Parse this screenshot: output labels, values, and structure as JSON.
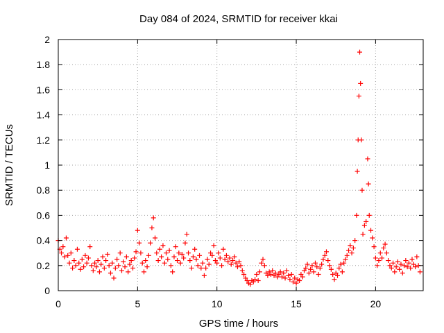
{
  "chart_data": {
    "type": "scatter",
    "title": "Day 084 of 2024, SRMTID for receiver kkai",
    "xlabel": "GPS time / hours",
    "ylabel": "SRMTID / TECUs",
    "xlim": [
      0,
      23
    ],
    "ylim": [
      0,
      2
    ],
    "xticks": [
      0,
      5,
      10,
      15,
      20
    ],
    "xtick_labels": [
      "0",
      "5",
      "10",
      "15",
      "20"
    ],
    "yticks": [
      0,
      0.2,
      0.4,
      0.6,
      0.8,
      1,
      1.2,
      1.4,
      1.6,
      1.8,
      2
    ],
    "ytick_labels": [
      "0",
      "0.2",
      "0.4",
      "0.6",
      "0.8",
      "1",
      "1.2",
      "1.4",
      "1.6",
      "1.8",
      "2"
    ],
    "grid": true,
    "marker": "plus",
    "color": "#ff0000",
    "series": [
      {
        "name": "SRMTID",
        "points": [
          [
            0.0,
            0.4
          ],
          [
            0.1,
            0.33
          ],
          [
            0.2,
            0.3
          ],
          [
            0.3,
            0.35
          ],
          [
            0.4,
            0.27
          ],
          [
            0.5,
            0.42
          ],
          [
            0.6,
            0.28
          ],
          [
            0.7,
            0.22
          ],
          [
            0.8,
            0.3
          ],
          [
            0.9,
            0.18
          ],
          [
            1.0,
            0.24
          ],
          [
            1.1,
            0.2
          ],
          [
            1.2,
            0.33
          ],
          [
            1.3,
            0.22
          ],
          [
            1.4,
            0.17
          ],
          [
            1.5,
            0.25
          ],
          [
            1.6,
            0.19
          ],
          [
            1.7,
            0.28
          ],
          [
            1.8,
            0.22
          ],
          [
            1.9,
            0.26
          ],
          [
            2.0,
            0.35
          ],
          [
            2.1,
            0.2
          ],
          [
            2.2,
            0.16
          ],
          [
            2.3,
            0.22
          ],
          [
            2.4,
            0.19
          ],
          [
            2.5,
            0.24
          ],
          [
            2.6,
            0.15
          ],
          [
            2.7,
            0.21
          ],
          [
            2.8,
            0.27
          ],
          [
            2.9,
            0.18
          ],
          [
            3.0,
            0.24
          ],
          [
            3.1,
            0.29
          ],
          [
            3.2,
            0.2
          ],
          [
            3.3,
            0.14
          ],
          [
            3.4,
            0.22
          ],
          [
            3.5,
            0.1
          ],
          [
            3.6,
            0.18
          ],
          [
            3.7,
            0.25
          ],
          [
            3.8,
            0.2
          ],
          [
            3.9,
            0.3
          ],
          [
            4.0,
            0.16
          ],
          [
            4.1,
            0.23
          ],
          [
            4.2,
            0.19
          ],
          [
            4.3,
            0.27
          ],
          [
            4.4,
            0.15
          ],
          [
            4.5,
            0.21
          ],
          [
            4.6,
            0.24
          ],
          [
            4.7,
            0.18
          ],
          [
            4.8,
            0.26
          ],
          [
            4.9,
            0.31
          ],
          [
            5.0,
            0.48
          ],
          [
            5.1,
            0.38
          ],
          [
            5.2,
            0.3
          ],
          [
            5.3,
            0.22
          ],
          [
            5.4,
            0.15
          ],
          [
            5.5,
            0.24
          ],
          [
            5.6,
            0.19
          ],
          [
            5.7,
            0.28
          ],
          [
            5.8,
            0.38
          ],
          [
            5.9,
            0.5
          ],
          [
            6.0,
            0.58
          ],
          [
            6.1,
            0.42
          ],
          [
            6.2,
            0.3
          ],
          [
            6.3,
            0.24
          ],
          [
            6.4,
            0.33
          ],
          [
            6.5,
            0.27
          ],
          [
            6.6,
            0.36
          ],
          [
            6.7,
            0.22
          ],
          [
            6.8,
            0.3
          ],
          [
            6.9,
            0.25
          ],
          [
            7.0,
            0.32
          ],
          [
            7.1,
            0.2
          ],
          [
            7.2,
            0.15
          ],
          [
            7.3,
            0.27
          ],
          [
            7.4,
            0.35
          ],
          [
            7.5,
            0.24
          ],
          [
            7.6,
            0.3
          ],
          [
            7.7,
            0.22
          ],
          [
            7.8,
            0.29
          ],
          [
            7.9,
            0.26
          ],
          [
            8.0,
            0.38
          ],
          [
            8.1,
            0.45
          ],
          [
            8.2,
            0.3
          ],
          [
            8.3,
            0.24
          ],
          [
            8.4,
            0.18
          ],
          [
            8.5,
            0.27
          ],
          [
            8.6,
            0.33
          ],
          [
            8.7,
            0.25
          ],
          [
            8.8,
            0.2
          ],
          [
            8.9,
            0.28
          ],
          [
            9.0,
            0.18
          ],
          [
            9.1,
            0.22
          ],
          [
            9.2,
            0.12
          ],
          [
            9.3,
            0.18
          ],
          [
            9.4,
            0.25
          ],
          [
            9.5,
            0.21
          ],
          [
            9.6,
            0.3
          ],
          [
            9.7,
            0.28
          ],
          [
            9.8,
            0.36
          ],
          [
            9.9,
            0.24
          ],
          [
            10.0,
            0.22
          ],
          [
            10.1,
            0.3
          ],
          [
            10.2,
            0.26
          ],
          [
            10.3,
            0.2
          ],
          [
            10.4,
            0.33
          ],
          [
            10.5,
            0.25
          ],
          [
            10.6,
            0.28
          ],
          [
            10.7,
            0.23
          ],
          [
            10.8,
            0.26
          ],
          [
            10.9,
            0.21
          ],
          [
            11.0,
            0.24
          ],
          [
            11.1,
            0.27
          ],
          [
            11.2,
            0.22
          ],
          [
            11.3,
            0.19
          ],
          [
            11.4,
            0.23
          ],
          [
            11.5,
            0.2
          ],
          [
            11.6,
            0.16
          ],
          [
            11.7,
            0.13
          ],
          [
            11.8,
            0.1
          ],
          [
            11.9,
            0.08
          ],
          [
            12.0,
            0.06
          ],
          [
            12.1,
            0.05
          ],
          [
            12.2,
            0.08
          ],
          [
            12.3,
            0.07
          ],
          [
            12.4,
            0.09
          ],
          [
            12.5,
            0.13
          ],
          [
            12.6,
            0.08
          ],
          [
            12.7,
            0.15
          ],
          [
            12.8,
            0.22
          ],
          [
            12.9,
            0.25
          ],
          [
            13.0,
            0.2
          ],
          [
            13.1,
            0.14
          ],
          [
            13.2,
            0.12
          ],
          [
            13.3,
            0.15
          ],
          [
            13.4,
            0.13
          ],
          [
            13.5,
            0.16
          ],
          [
            13.6,
            0.12
          ],
          [
            13.7,
            0.14
          ],
          [
            13.8,
            0.11
          ],
          [
            13.9,
            0.13
          ],
          [
            14.0,
            0.15
          ],
          [
            14.1,
            0.11
          ],
          [
            14.2,
            0.14
          ],
          [
            14.3,
            0.1
          ],
          [
            14.4,
            0.16
          ],
          [
            14.5,
            0.12
          ],
          [
            14.6,
            0.09
          ],
          [
            14.7,
            0.13
          ],
          [
            14.8,
            0.07
          ],
          [
            14.9,
            0.1
          ],
          [
            15.0,
            0.06
          ],
          [
            15.1,
            0.09
          ],
          [
            15.2,
            0.08
          ],
          [
            15.3,
            0.13
          ],
          [
            15.4,
            0.11
          ],
          [
            15.5,
            0.16
          ],
          [
            15.6,
            0.18
          ],
          [
            15.7,
            0.21
          ],
          [
            15.8,
            0.14
          ],
          [
            15.9,
            0.17
          ],
          [
            16.0,
            0.2
          ],
          [
            16.1,
            0.15
          ],
          [
            16.2,
            0.22
          ],
          [
            16.3,
            0.19
          ],
          [
            16.4,
            0.13
          ],
          [
            16.5,
            0.18
          ],
          [
            16.6,
            0.21
          ],
          [
            16.7,
            0.25
          ],
          [
            16.8,
            0.28
          ],
          [
            16.9,
            0.31
          ],
          [
            17.0,
            0.24
          ],
          [
            17.1,
            0.2
          ],
          [
            17.2,
            0.17
          ],
          [
            17.3,
            0.13
          ],
          [
            17.4,
            0.09
          ],
          [
            17.5,
            0.14
          ],
          [
            17.6,
            0.12
          ],
          [
            17.7,
            0.18
          ],
          [
            17.8,
            0.21
          ],
          [
            17.9,
            0.15
          ],
          [
            18.0,
            0.22
          ],
          [
            18.1,
            0.25
          ],
          [
            18.2,
            0.28
          ],
          [
            18.3,
            0.32
          ],
          [
            18.4,
            0.36
          ],
          [
            18.5,
            0.3
          ],
          [
            18.6,
            0.34
          ],
          [
            18.7,
            0.4
          ],
          [
            18.8,
            0.6
          ],
          [
            18.85,
            0.95
          ],
          [
            18.9,
            1.2
          ],
          [
            18.95,
            1.55
          ],
          [
            19.0,
            1.9
          ],
          [
            19.05,
            1.65
          ],
          [
            19.1,
            1.2
          ],
          [
            19.15,
            0.8
          ],
          [
            19.2,
            0.45
          ],
          [
            19.3,
            0.52
          ],
          [
            19.4,
            0.55
          ],
          [
            19.5,
            1.05
          ],
          [
            19.55,
            0.85
          ],
          [
            19.6,
            0.6
          ],
          [
            19.7,
            0.48
          ],
          [
            19.8,
            0.42
          ],
          [
            19.9,
            0.35
          ],
          [
            20.0,
            0.26
          ],
          [
            20.1,
            0.2
          ],
          [
            20.2,
            0.24
          ],
          [
            20.3,
            0.3
          ],
          [
            20.4,
            0.26
          ],
          [
            20.5,
            0.34
          ],
          [
            20.6,
            0.37
          ],
          [
            20.7,
            0.3
          ],
          [
            20.8,
            0.24
          ],
          [
            20.9,
            0.2
          ],
          [
            21.0,
            0.18
          ],
          [
            21.1,
            0.22
          ],
          [
            21.2,
            0.15
          ],
          [
            21.3,
            0.19
          ],
          [
            21.4,
            0.23
          ],
          [
            21.5,
            0.17
          ],
          [
            21.6,
            0.21
          ],
          [
            21.7,
            0.14
          ],
          [
            21.8,
            0.2
          ],
          [
            21.9,
            0.24
          ],
          [
            22.0,
            0.19
          ],
          [
            22.1,
            0.22
          ],
          [
            22.2,
            0.18
          ],
          [
            22.3,
            0.25
          ],
          [
            22.4,
            0.21
          ],
          [
            22.5,
            0.19
          ],
          [
            22.6,
            0.27
          ],
          [
            22.7,
            0.2
          ],
          [
            22.8,
            0.15
          ]
        ]
      }
    ]
  }
}
